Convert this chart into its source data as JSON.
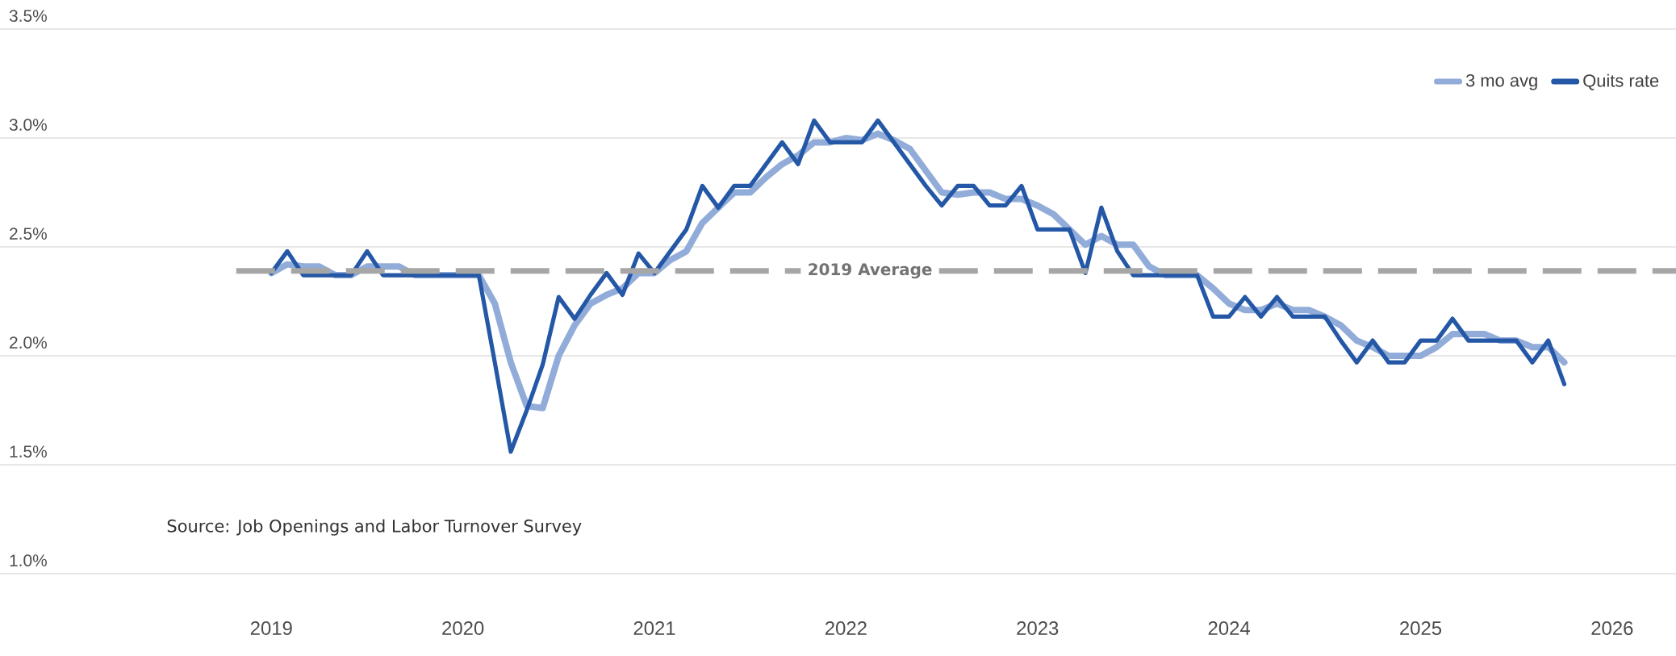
{
  "chart_data": {
    "type": "line",
    "x": [
      "2019-01",
      "2019-02",
      "2019-03",
      "2019-04",
      "2019-05",
      "2019-06",
      "2019-07",
      "2019-08",
      "2019-09",
      "2019-10",
      "2019-11",
      "2019-12",
      "2020-01",
      "2020-02",
      "2020-03",
      "2020-04",
      "2020-05",
      "2020-06",
      "2020-07",
      "2020-08",
      "2020-09",
      "2020-10",
      "2020-11",
      "2020-12",
      "2021-01",
      "2021-02",
      "2021-03",
      "2021-04",
      "2021-05",
      "2021-06",
      "2021-07",
      "2021-08",
      "2021-09",
      "2021-10",
      "2021-11",
      "2021-12",
      "2022-01",
      "2022-02",
      "2022-03",
      "2022-04",
      "2022-05",
      "2022-06",
      "2022-07",
      "2022-08",
      "2022-09",
      "2022-10",
      "2022-11",
      "2022-12",
      "2023-01",
      "2023-02",
      "2023-03",
      "2023-04",
      "2023-05",
      "2023-06",
      "2023-07",
      "2023-08",
      "2023-09",
      "2023-10",
      "2023-11",
      "2023-12",
      "2024-01",
      "2024-02",
      "2024-03",
      "2024-04",
      "2024-05",
      "2024-06",
      "2024-07",
      "2024-08",
      "2024-09",
      "2024-10",
      "2024-11",
      "2024-12",
      "2025-01",
      "2025-02",
      "2025-03",
      "2025-04",
      "2025-05",
      "2025-06",
      "2025-07",
      "2025-08",
      "2025-09",
      "2025-10"
    ],
    "series": [
      {
        "name": "3 mo avg",
        "color": "#92acd9",
        "values": [
          2.38,
          2.42,
          2.41,
          2.41,
          2.37,
          2.37,
          2.41,
          2.41,
          2.41,
          2.37,
          2.37,
          2.37,
          2.37,
          2.37,
          2.24,
          1.97,
          1.77,
          1.76,
          2.0,
          2.14,
          2.24,
          2.28,
          2.31,
          2.38,
          2.38,
          2.44,
          2.48,
          2.61,
          2.68,
          2.75,
          2.75,
          2.82,
          2.88,
          2.92,
          2.98,
          2.98,
          3.0,
          2.99,
          3.02,
          2.99,
          2.95,
          2.85,
          2.75,
          2.74,
          2.75,
          2.75,
          2.72,
          2.72,
          2.69,
          2.65,
          2.58,
          2.51,
          2.55,
          2.51,
          2.51,
          2.41,
          2.37,
          2.37,
          2.37,
          2.31,
          2.24,
          2.21,
          2.21,
          2.24,
          2.21,
          2.21,
          2.18,
          2.14,
          2.07,
          2.04,
          2.0,
          2.0,
          2.0,
          2.04,
          2.1,
          2.1,
          2.1,
          2.07,
          2.07,
          2.04,
          2.04,
          1.97
        ]
      },
      {
        "name": "Quits rate",
        "color": "#2457a6",
        "values": [
          2.38,
          2.48,
          2.37,
          2.37,
          2.37,
          2.37,
          2.48,
          2.37,
          2.37,
          2.37,
          2.37,
          2.37,
          2.37,
          2.37,
          1.97,
          1.56,
          1.75,
          1.96,
          2.27,
          2.17,
          2.28,
          2.38,
          2.28,
          2.47,
          2.38,
          2.48,
          2.58,
          2.78,
          2.68,
          2.78,
          2.78,
          2.88,
          2.98,
          2.88,
          3.08,
          2.98,
          2.98,
          2.98,
          3.08,
          2.98,
          2.88,
          2.78,
          2.69,
          2.78,
          2.78,
          2.69,
          2.69,
          2.78,
          2.58,
          2.58,
          2.58,
          2.38,
          2.68,
          2.48,
          2.37,
          2.37,
          2.37,
          2.37,
          2.37,
          2.18,
          2.18,
          2.27,
          2.18,
          2.27,
          2.18,
          2.18,
          2.18,
          2.07,
          1.97,
          2.07,
          1.97,
          1.97,
          2.07,
          2.07,
          2.17,
          2.07,
          2.07,
          2.07,
          2.07,
          1.97,
          2.07,
          1.87
        ]
      }
    ],
    "xlim": [
      "2017-08",
      "2026-05"
    ],
    "xticks": [
      {
        "value": "2019-01",
        "label": "2019"
      },
      {
        "value": "2020-01",
        "label": "2020"
      },
      {
        "value": "2021-01",
        "label": "2021"
      },
      {
        "value": "2022-01",
        "label": "2022"
      },
      {
        "value": "2023-01",
        "label": "2023"
      },
      {
        "value": "2024-01",
        "label": "2024"
      },
      {
        "value": "2025-01",
        "label": "2025"
      },
      {
        "value": "2026-01",
        "label": "2026"
      }
    ],
    "ylim": [
      1.0,
      3.5
    ],
    "yticks": [
      {
        "value": 1.0,
        "label": "1.0%"
      },
      {
        "value": 1.5,
        "label": "1.5%"
      },
      {
        "value": 2.0,
        "label": "2.0%"
      },
      {
        "value": 2.5,
        "label": "2.5%"
      },
      {
        "value": 3.0,
        "label": "3.0%"
      },
      {
        "value": 3.5,
        "label": "3.5%"
      }
    ],
    "ref_lines": [
      {
        "axis": "y",
        "value": 2.39,
        "label": "2019 Average",
        "color": "#a6a6a6",
        "line_style": "dashed"
      }
    ],
    "annotations": [
      "Source: Job Openings and Labor Turnover Survey"
    ],
    "grid": "y",
    "legend": "top right",
    "marker": "none",
    "line_style": "solid"
  }
}
